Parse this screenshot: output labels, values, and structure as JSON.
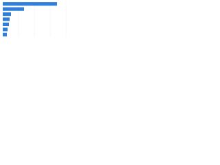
{
  "chart_data": {
    "type": "hbar",
    "categories": [
      null,
      null,
      null,
      null,
      null,
      null,
      null
    ],
    "values": [
      79,
      31,
      12,
      10,
      9,
      7,
      6
    ],
    "color": "#2f7ed8"
  }
}
